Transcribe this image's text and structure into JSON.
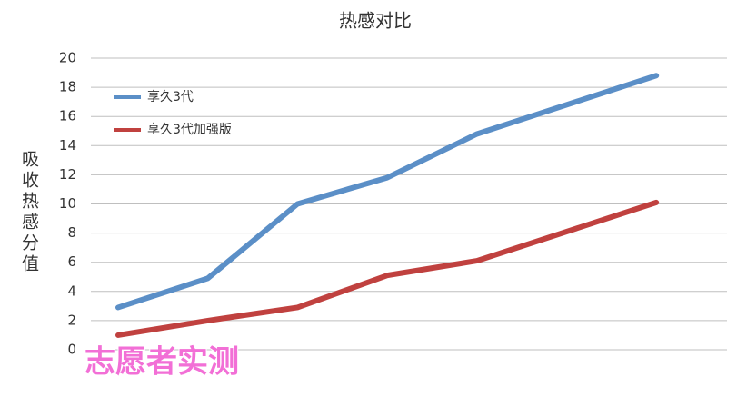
{
  "chart_data": {
    "type": "line",
    "title": "热感对比",
    "y_label": "吸收热感分值",
    "categories": [
      null,
      null,
      null,
      null,
      null,
      null,
      null
    ],
    "series": [
      {
        "name": "享久3代",
        "color": "#5b8fc7",
        "values": [
          2.9,
          4.9,
          10,
          11.8,
          14.8,
          16.8,
          18.8
        ]
      },
      {
        "name": "享久3代加强版",
        "color": "#c0413f",
        "values": [
          1,
          2,
          2.9,
          5.1,
          6.1,
          8.1,
          10.1
        ]
      }
    ],
    "ylim": [
      0,
      20
    ],
    "yticks": [
      0,
      2,
      4,
      6,
      8,
      10,
      12,
      14,
      16,
      18,
      20
    ],
    "grid": true,
    "legend": "upper left",
    "annotation": "志愿者实测"
  }
}
